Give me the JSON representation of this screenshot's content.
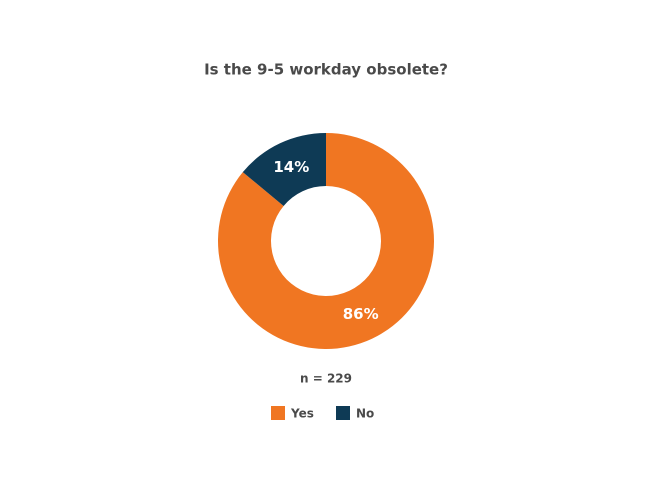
{
  "chart_data": {
    "type": "pie",
    "title": "Is the 9-5 workday obsolete?",
    "categories": [
      "Yes",
      "No"
    ],
    "values": [
      86,
      14
    ],
    "value_labels": [
      "86%",
      "14%"
    ],
    "colors": [
      "#f07622",
      "#0e3a55"
    ],
    "donut": true,
    "note": "n = 229",
    "legend": "bottom"
  }
}
